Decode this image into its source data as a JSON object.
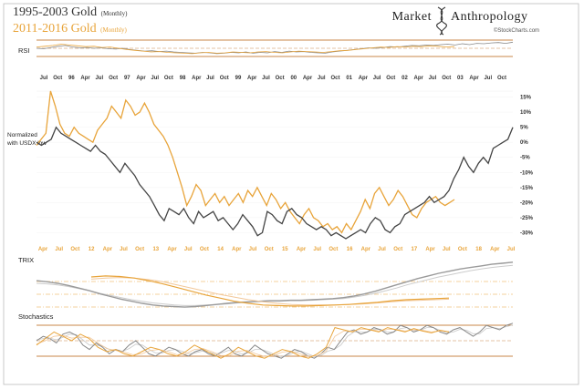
{
  "header": {
    "title1_main": "1995-2003 Gold",
    "title1_sub": "(Monthly)",
    "title2_main": "2011-2016 Gold",
    "title2_sub": "(Monthly)",
    "brand_left": "Market",
    "brand_right": "Anthropology",
    "credit": "©StockCharts.com"
  },
  "colors": {
    "gold_1995": "#444444",
    "gold_2011": "#e8a43a",
    "light_gray": "#b0b0b0",
    "light_orange": "#f2c89a",
    "band_line": "#c8874a"
  },
  "chart_data": {
    "type": "line",
    "panels": {
      "rsi_label": "RSI",
      "trix_label": "TRIX",
      "stoch_label": "Stochastics",
      "note": [
        "Normalized",
        "with USDX low"
      ]
    },
    "x_top_labels": [
      "Jul",
      "Oct",
      "96",
      "Apr",
      "Jul",
      "Oct",
      "97",
      "Apr",
      "Jul",
      "Oct",
      "98",
      "Apr",
      "Jul",
      "Oct",
      "99",
      "Apr",
      "Jul",
      "Oct",
      "00",
      "Apr",
      "Jul",
      "Oct",
      "01",
      "Apr",
      "Jul",
      "Oct",
      "02",
      "Apr",
      "Jul",
      "Oct",
      "03",
      "Apr",
      "Jul",
      "Oct"
    ],
    "x_bottom_labels": [
      "Apr",
      "Jul",
      "Oct",
      "12",
      "Apr",
      "Jul",
      "Oct",
      "13",
      "Apr",
      "Jul",
      "Oct",
      "14",
      "Apr",
      "Jul",
      "Oct",
      "15",
      "Apr",
      "Jul",
      "Oct",
      "16",
      "Apr",
      "Jul",
      "Oct",
      "17",
      "Apr",
      "Jul",
      "Oct",
      "18",
      "Apr",
      "Jul"
    ],
    "y_ticks": [
      "15%",
      "10%",
      "5%",
      "0%",
      "-5%",
      "-10%",
      "-15%",
      "-20%",
      "-25%",
      "-30%"
    ],
    "ylim": [
      -32,
      17
    ],
    "series": [
      {
        "name": "1995-2003 Gold",
        "color": "#444444",
        "values": [
          0,
          -1,
          0,
          1,
          5,
          3,
          2,
          1,
          0,
          -1,
          -2,
          -3,
          -1,
          -3,
          -4,
          -6,
          -8,
          -10,
          -7,
          -9,
          -11,
          -14,
          -16,
          -18,
          -21,
          -24,
          -26,
          -22,
          -23,
          -24,
          -22,
          -25,
          -27,
          -23,
          -25,
          -24,
          -23,
          -26,
          -25,
          -27,
          -29,
          -27,
          -24,
          -26,
          -28,
          -31,
          -30,
          -23,
          -24,
          -26,
          -27,
          -23,
          -22,
          -24,
          -25,
          -27,
          -28,
          -29,
          -28,
          -29,
          -31,
          -30,
          -31,
          -32,
          -31,
          -30,
          -29,
          -30,
          -27,
          -25,
          -26,
          -29,
          -30,
          -28,
          -27,
          -24,
          -23,
          -22,
          -21,
          -20,
          -18,
          -20,
          -19,
          -18,
          -16,
          -12,
          -9,
          -5,
          -8,
          -10,
          -7,
          -5,
          -7,
          -2,
          -1,
          0,
          1,
          5
        ]
      },
      {
        "name": "2011-2016 Gold",
        "color": "#e8a43a",
        "values": [
          -1,
          1,
          3,
          17,
          12,
          6,
          3,
          2,
          5,
          3,
          2,
          1,
          0,
          4,
          6,
          8,
          12,
          10,
          8,
          14,
          12,
          9,
          10,
          13,
          10,
          6,
          4,
          2,
          -1,
          -5,
          -10,
          -15,
          -21,
          -18,
          -14,
          -16,
          -21,
          -19,
          -17,
          -20,
          -18,
          -21,
          -19,
          -17,
          -20,
          -16,
          -18,
          -15,
          -18,
          -21,
          -17,
          -19,
          -22,
          -20,
          -23,
          -25,
          -27,
          -24,
          -22,
          -25,
          -26,
          -28,
          -27,
          -29,
          -28,
          -30,
          -27,
          -29,
          -26,
          -23,
          -19,
          -22,
          -17,
          -15,
          -18,
          -21,
          -19,
          -16,
          -18,
          -21,
          -24,
          -25,
          -22,
          -20,
          -19,
          -18,
          -20,
          -21,
          -20,
          -19
        ]
      }
    ],
    "rsi": {
      "gold_1995": [
        55,
        54,
        57,
        60,
        62,
        58,
        56,
        57,
        55,
        56,
        54,
        53,
        55,
        52,
        50,
        48,
        49,
        47,
        48,
        46,
        45,
        44,
        43,
        45,
        44,
        42,
        43,
        45,
        44,
        46,
        43,
        45,
        44,
        47,
        45,
        48,
        46,
        47,
        45,
        44,
        43,
        46,
        48,
        50,
        52,
        54,
        56,
        55,
        57,
        59,
        58,
        60,
        62,
        61,
        63,
        62,
        64,
        65,
        63,
        66,
        64,
        67,
        66,
        68,
        69,
        67,
        70
      ],
      "gold_2011": [
        58,
        60,
        62,
        65,
        63,
        61,
        59,
        60,
        57,
        58,
        55,
        52,
        50,
        48,
        46,
        47,
        45,
        44,
        43,
        42,
        44,
        45,
        43,
        44,
        46,
        45,
        44,
        46,
        47,
        45,
        44,
        46,
        48,
        47,
        46,
        45,
        47,
        49,
        50,
        52,
        54,
        56,
        58,
        57,
        59,
        58,
        60,
        59,
        61,
        60,
        58,
        59
      ]
    },
    "trix": {
      "gold_1995": [
        0.55,
        0.53,
        0.5,
        0.46,
        0.41,
        0.36,
        0.3,
        0.25,
        0.2,
        0.16,
        0.12,
        0.09,
        0.07,
        0.06,
        0.05,
        0.06,
        0.08,
        0.1,
        0.12,
        0.14,
        0.15,
        0.16,
        0.17,
        0.17,
        0.18,
        0.18,
        0.19,
        0.2,
        0.21,
        0.23,
        0.26,
        0.3,
        0.35,
        0.41,
        0.47,
        0.53,
        0.59,
        0.64,
        0.69,
        0.73,
        0.77,
        0.8,
        0.83,
        0.86,
        0.88,
        0.9
      ],
      "gold_1995_signal": [
        0.5,
        0.49,
        0.47,
        0.44,
        0.4,
        0.36,
        0.31,
        0.27,
        0.23,
        0.19,
        0.16,
        0.13,
        0.11,
        0.09,
        0.08,
        0.08,
        0.09,
        0.1,
        0.11,
        0.13,
        0.14,
        0.15,
        0.16,
        0.16,
        0.17,
        0.17,
        0.18,
        0.19,
        0.2,
        0.21,
        0.24,
        0.27,
        0.31,
        0.36,
        0.41,
        0.47,
        0.52,
        0.57,
        0.62,
        0.66,
        0.7,
        0.74,
        0.77,
        0.8,
        0.82,
        0.84
      ],
      "gold_2011": [
        0.62,
        0.64,
        0.63,
        0.6,
        0.55,
        0.49,
        0.42,
        0.35,
        0.28,
        0.22,
        0.16,
        0.12,
        0.09,
        0.08,
        0.07,
        0.07,
        0.08,
        0.09,
        0.1,
        0.12,
        0.14,
        0.17,
        0.19,
        0.2,
        0.21,
        0.22
      ],
      "gold_2011_signal": [
        0.58,
        0.6,
        0.61,
        0.6,
        0.57,
        0.53,
        0.47,
        0.41,
        0.35,
        0.29,
        0.24,
        0.19,
        0.15,
        0.12,
        0.1,
        0.09,
        0.09,
        0.09,
        0.1,
        0.11,
        0.13,
        0.15,
        0.17,
        0.18,
        0.19,
        0.2
      ]
    },
    "stochastics": {
      "gold_1995": [
        50,
        60,
        55,
        45,
        65,
        70,
        62,
        40,
        30,
        45,
        35,
        20,
        30,
        25,
        40,
        50,
        35,
        20,
        15,
        25,
        35,
        30,
        20,
        15,
        25,
        30,
        20,
        15,
        25,
        35,
        20,
        15,
        25,
        40,
        30,
        20,
        15,
        10,
        20,
        30,
        25,
        15,
        10,
        20,
        35,
        30,
        50,
        70,
        75,
        65,
        70,
        80,
        75,
        65,
        70,
        85,
        80,
        70,
        75,
        85,
        80,
        70,
        65,
        75,
        80,
        70,
        60,
        70,
        85,
        80,
        75,
        85,
        90
      ],
      "gold_1995_signal": [
        52,
        55,
        56,
        52,
        58,
        65,
        64,
        52,
        40,
        40,
        38,
        30,
        28,
        26,
        32,
        42,
        40,
        30,
        22,
        22,
        28,
        30,
        26,
        20,
        22,
        26,
        24,
        20,
        22,
        28,
        26,
        20,
        22,
        30,
        30,
        25,
        18,
        14,
        16,
        24,
        26,
        20,
        14,
        16,
        26,
        30,
        40,
        60,
        70,
        70,
        70,
        76,
        76,
        70,
        70,
        78,
        80,
        74,
        74,
        80,
        80,
        74,
        68,
        70,
        76,
        74,
        66,
        66,
        78,
        80,
        78,
        82,
        86
      ],
      "gold_2011": [
        40,
        55,
        70,
        60,
        50,
        65,
        55,
        35,
        25,
        30,
        20,
        15,
        25,
        35,
        30,
        20,
        15,
        25,
        40,
        30,
        20,
        10,
        20,
        35,
        25,
        15,
        10,
        20,
        30,
        25,
        15,
        10,
        20,
        35,
        80,
        75,
        70,
        80,
        75,
        70,
        80,
        75,
        70,
        78,
        72,
        68,
        74,
        70
      ],
      "gold_2011_signal": [
        42,
        50,
        60,
        62,
        56,
        58,
        58,
        45,
        32,
        28,
        24,
        18,
        20,
        28,
        30,
        25,
        18,
        20,
        30,
        32,
        25,
        16,
        16,
        26,
        28,
        20,
        14,
        16,
        24,
        26,
        20,
        14,
        16,
        26,
        60,
        72,
        72,
        76,
        76,
        72,
        76,
        76,
        72,
        75,
        74,
        70,
        72,
        71
      ]
    }
  }
}
